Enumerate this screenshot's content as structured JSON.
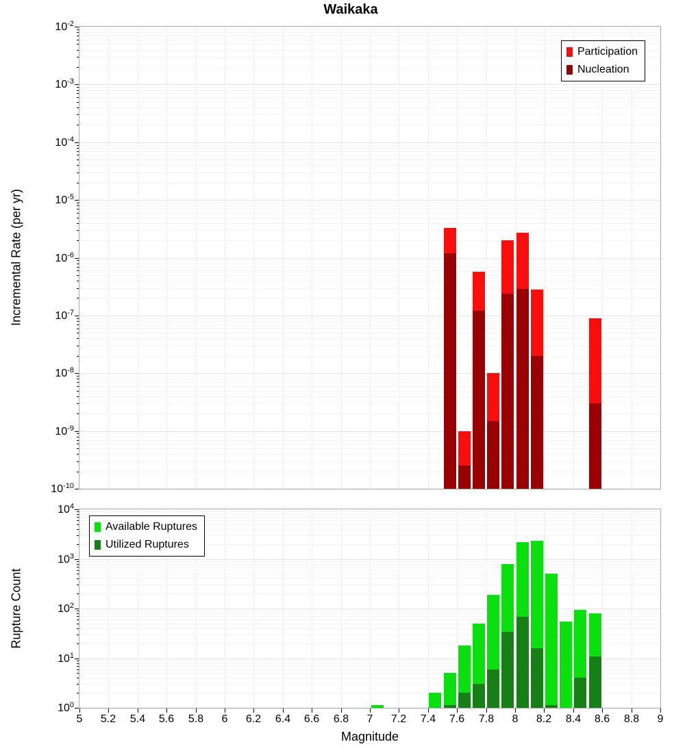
{
  "title": "Waikaka",
  "x_axis": {
    "label": "Magnitude",
    "min": 5,
    "max": 9,
    "tick_step": 0.2,
    "tick_labels": [
      "5",
      "5.2",
      "5.4",
      "5.6",
      "5.8",
      "6",
      "6.2",
      "6.4",
      "6.6",
      "6.8",
      "7",
      "7.2",
      "7.4",
      "7.6",
      "7.8",
      "8",
      "8.2",
      "8.4",
      "8.6",
      "8.8",
      "9"
    ]
  },
  "chart_data": [
    {
      "id": "incremental-rate",
      "type": "bar",
      "ylabel": "Incremental Rate (per yr)",
      "yscale": "log",
      "ylim": [
        1e-10,
        0.01
      ],
      "ytick_exponents": [
        -2,
        -3,
        -4,
        -5,
        -6,
        -7,
        -8,
        -9,
        -10
      ],
      "bin_width": 0.1,
      "grid": true,
      "legend_position": "top-right",
      "series": [
        {
          "name": "Participation",
          "color": "#fa0d0d",
          "points": [
            [
              7.55,
              3.3e-06
            ],
            [
              7.65,
              1e-09
            ],
            [
              7.75,
              5.8e-07
            ],
            [
              7.85,
              1e-08
            ],
            [
              7.95,
              2e-06
            ],
            [
              8.05,
              2.7e-06
            ],
            [
              8.15,
              2.8e-07
            ],
            [
              8.55,
              9e-08
            ]
          ]
        },
        {
          "name": "Nucleation",
          "color": "#990000",
          "points": [
            [
              7.55,
              1.2e-06
            ],
            [
              7.65,
              2.5e-10
            ],
            [
              7.75,
              1.2e-07
            ],
            [
              7.85,
              1.5e-09
            ],
            [
              7.95,
              2.4e-07
            ],
            [
              8.05,
              2.9e-07
            ],
            [
              8.15,
              2e-08
            ],
            [
              8.55,
              3e-09
            ]
          ]
        }
      ]
    },
    {
      "id": "rupture-count",
      "type": "bar",
      "ylabel": "Rupture Count",
      "yscale": "log",
      "ylim": [
        1,
        10000
      ],
      "ytick_exponents": [
        4,
        3,
        2,
        1,
        0
      ],
      "bin_width": 0.1,
      "grid": true,
      "legend_position": "top-left",
      "series": [
        {
          "name": "Available Ruptures",
          "color": "#0ae00e",
          "points": [
            [
              7.05,
              1
            ],
            [
              7.45,
              2
            ],
            [
              7.55,
              5
            ],
            [
              7.65,
              18
            ],
            [
              7.75,
              50
            ],
            [
              7.85,
              190
            ],
            [
              7.95,
              800
            ],
            [
              8.05,
              2200
            ],
            [
              8.15,
              2300
            ],
            [
              8.25,
              500
            ],
            [
              8.35,
              55
            ],
            [
              8.45,
              95
            ],
            [
              8.55,
              80
            ]
          ]
        },
        {
          "name": "Utilized Ruptures",
          "color": "#168016",
          "points": [
            [
              7.55,
              1
            ],
            [
              7.65,
              2
            ],
            [
              7.75,
              3
            ],
            [
              7.85,
              6
            ],
            [
              7.95,
              34
            ],
            [
              8.05,
              68
            ],
            [
              8.15,
              16
            ],
            [
              8.25,
              1
            ],
            [
              8.45,
              4
            ],
            [
              8.55,
              11
            ]
          ]
        }
      ]
    }
  ]
}
